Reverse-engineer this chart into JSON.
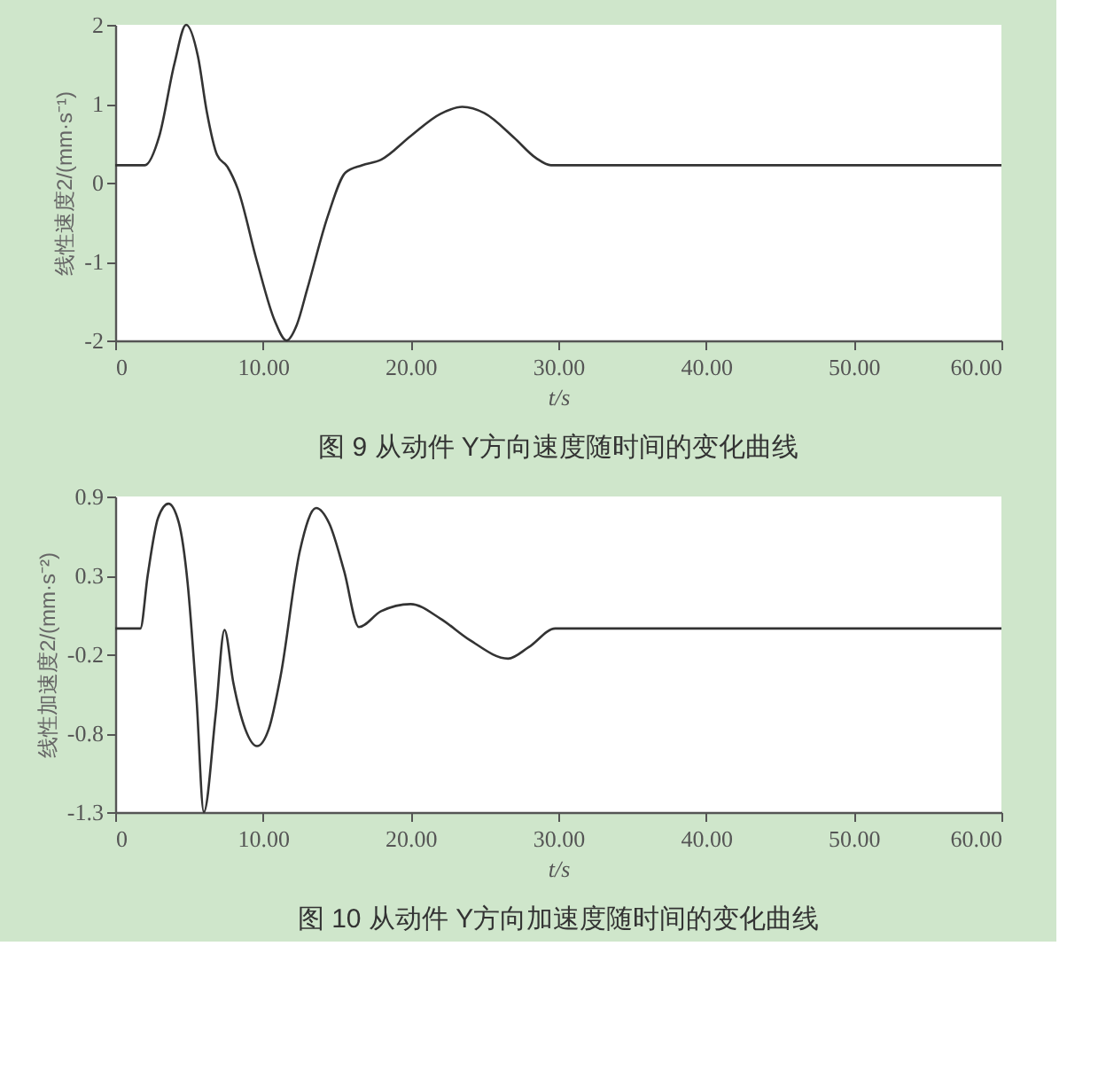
{
  "chart_data": [
    {
      "type": "line",
      "xlabel": "t/s",
      "ylabel": "线性速度2/(mm·s⁻¹)",
      "annotations": [
        "图 9    从动件 Y方向速度随时间的变化曲线"
      ],
      "xlim": [
        0,
        60
      ],
      "ylim": [
        -2,
        2
      ],
      "xticks": [
        0,
        {
          "value": 10,
          "label": "10.00"
        },
        {
          "value": 20,
          "label": "20.00"
        },
        {
          "value": 30,
          "label": "30.00"
        },
        {
          "value": 40,
          "label": "40.00"
        },
        {
          "value": 50,
          "label": "50.00"
        },
        {
          "value": 60,
          "label": "60.00"
        }
      ],
      "yticks": [
        -2,
        -1,
        0,
        1,
        2
      ],
      "grid": false,
      "marker": "none",
      "line_style": "solid",
      "series": [
        {
          "color": "#333333",
          "x": [
            0,
            2,
            3,
            4,
            4.8,
            5.6,
            6.2,
            6.9,
            7.6,
            8.3,
            9.6,
            10.8,
            11.6,
            12.3,
            13,
            14.4,
            15.6,
            16.7,
            18,
            20,
            22,
            23.5,
            25,
            27,
            28.5,
            29.5,
            60
          ],
          "values": [
            0.22,
            0.22,
            0.6,
            1.5,
            2.0,
            1.6,
            0.9,
            0.35,
            0.2,
            -0.08,
            -1.0,
            -1.75,
            -2.0,
            -1.8,
            -1.35,
            -0.42,
            0.13,
            0.22,
            0.29,
            0.59,
            0.87,
            0.96,
            0.88,
            0.57,
            0.31,
            0.22,
            0.22
          ]
        }
      ]
    },
    {
      "type": "line",
      "xlabel": "t/s",
      "ylabel": "线性加速度2/(mm·s⁻²)",
      "annotations": [
        "图 10    从动件 Y方向加速度随时间的变化曲线"
      ],
      "xlim": [
        0,
        60
      ],
      "ylim": [
        -1.3,
        0.9
      ],
      "xticks": [
        0,
        {
          "value": 10,
          "label": "10.00"
        },
        {
          "value": 20,
          "label": "20.00"
        },
        {
          "value": 30,
          "label": "30.00"
        },
        {
          "value": 40,
          "label": "40.00"
        },
        {
          "value": 50,
          "label": "50.00"
        },
        {
          "value": 60,
          "label": "60.00"
        }
      ],
      "yticks": [
        -1.3,
        {
          "value": -0.75,
          "label": "-0.8"
        },
        -0.2,
        {
          "value": 0.35,
          "label": "0.3"
        },
        0.9
      ],
      "grid": false,
      "marker": "none",
      "line_style": "solid",
      "series": [
        {
          "color": "#333333",
          "x": [
            0,
            1.7,
            2.2,
            2.9,
            3.6,
            4.3,
            4.9,
            5.5,
            6.0,
            6.8,
            7.4,
            8.0,
            8.8,
            9.6,
            10.4,
            11.2,
            12.5,
            13.6,
            14.5,
            15.5,
            16.5,
            18,
            20,
            22,
            24,
            26.6,
            28,
            29.8,
            60
          ],
          "values": [
            -0.02,
            -0.02,
            0.35,
            0.75,
            0.85,
            0.72,
            0.3,
            -0.5,
            -1.3,
            -0.62,
            -0.03,
            -0.4,
            -0.72,
            -0.84,
            -0.72,
            -0.35,
            0.52,
            0.82,
            0.71,
            0.38,
            -0.01,
            0.1,
            0.15,
            0.05,
            -0.1,
            -0.23,
            -0.15,
            -0.02,
            -0.02
          ]
        }
      ]
    }
  ]
}
